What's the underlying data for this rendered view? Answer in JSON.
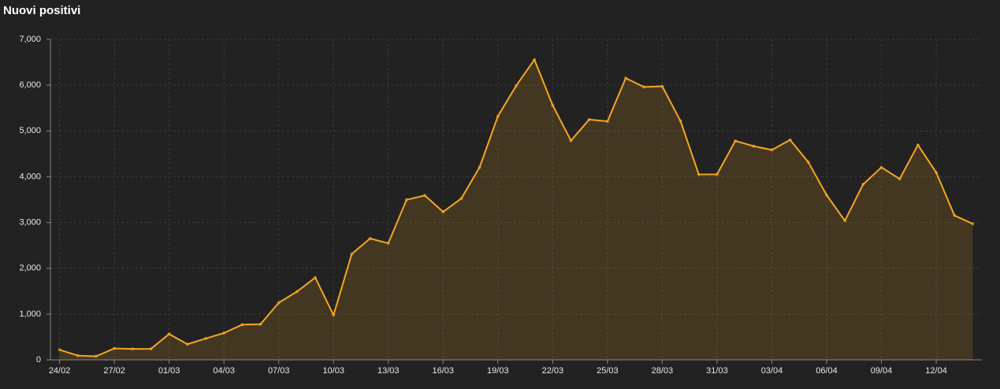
{
  "chart_data": {
    "type": "area",
    "title": "Nuovi positivi",
    "categories": [
      "24/02",
      null,
      null,
      "27/02",
      null,
      null,
      "01/03",
      null,
      null,
      "04/03",
      null,
      null,
      "07/03",
      null,
      null,
      "10/03",
      null,
      null,
      "13/03",
      null,
      null,
      "16/03",
      null,
      null,
      "19/03",
      null,
      null,
      "22/03",
      null,
      null,
      "25/03",
      null,
      null,
      "28/03",
      null,
      null,
      "31/03",
      null,
      null,
      "03/04",
      null,
      null,
      "06/04",
      null,
      null,
      "09/04",
      null,
      null,
      "12/04",
      null,
      null
    ],
    "values": [
      221,
      93,
      78,
      250,
      238,
      240,
      566,
      342,
      466,
      587,
      769,
      778,
      1247,
      1492,
      1797,
      977,
      2313,
      2651,
      2547,
      3497,
      3590,
      3233,
      3526,
      4207,
      5322,
      5986,
      6557,
      5560,
      4789,
      5249,
      5210,
      6153,
      5959,
      5974,
      5217,
      4050,
      4053,
      4782,
      4668,
      4585,
      4805,
      4316,
      3599,
      3039,
      3836,
      4204,
      3951,
      4694,
      4092,
      3153,
      2972
    ],
    "color": "#f5a623",
    "ylim": [
      0,
      7000
    ],
    "yticks": [
      0,
      {
        "value": 1000,
        "label": "1,000"
      },
      {
        "value": 2000,
        "label": "2,000"
      },
      {
        "value": 3000,
        "label": "3,000"
      },
      {
        "value": 4000,
        "label": "4,000"
      },
      {
        "value": 5000,
        "label": "5,000"
      },
      {
        "value": 6000,
        "label": "6,000"
      },
      {
        "value": 7000,
        "label": "7,000"
      }
    ],
    "grid": true
  }
}
